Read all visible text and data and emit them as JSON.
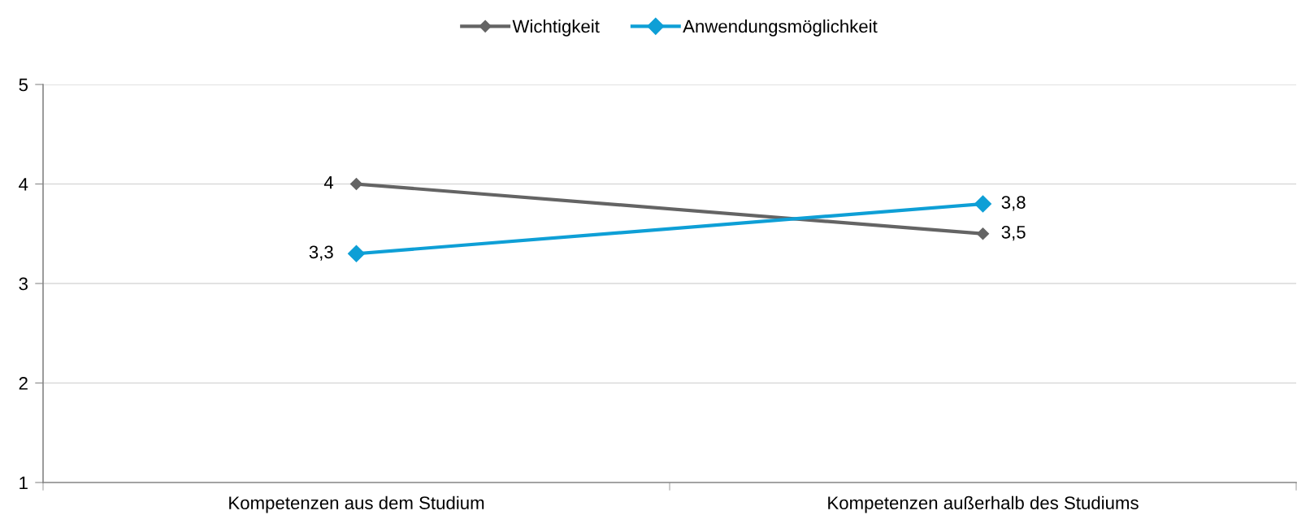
{
  "chart_data": {
    "type": "line",
    "categories": [
      "Kompetenzen aus dem Studium",
      "Kompetenzen außerhalb des Studiums"
    ],
    "series": [
      {
        "name": "Wichtigkeit",
        "color": "#646464",
        "values": [
          4,
          3.5
        ],
        "value_labels": [
          "4",
          "3,5"
        ]
      },
      {
        "name": "Anwendungsmöglichkeit",
        "color": "#0e9fd6",
        "values": [
          3.3,
          3.8
        ],
        "value_labels": [
          "3,3",
          "3,8"
        ]
      }
    ],
    "ylim": [
      1,
      5
    ],
    "yticks": [
      1,
      2,
      3,
      4,
      5
    ],
    "grid": "y",
    "legend": "top",
    "marker": "diamond",
    "line_style": "solid"
  }
}
